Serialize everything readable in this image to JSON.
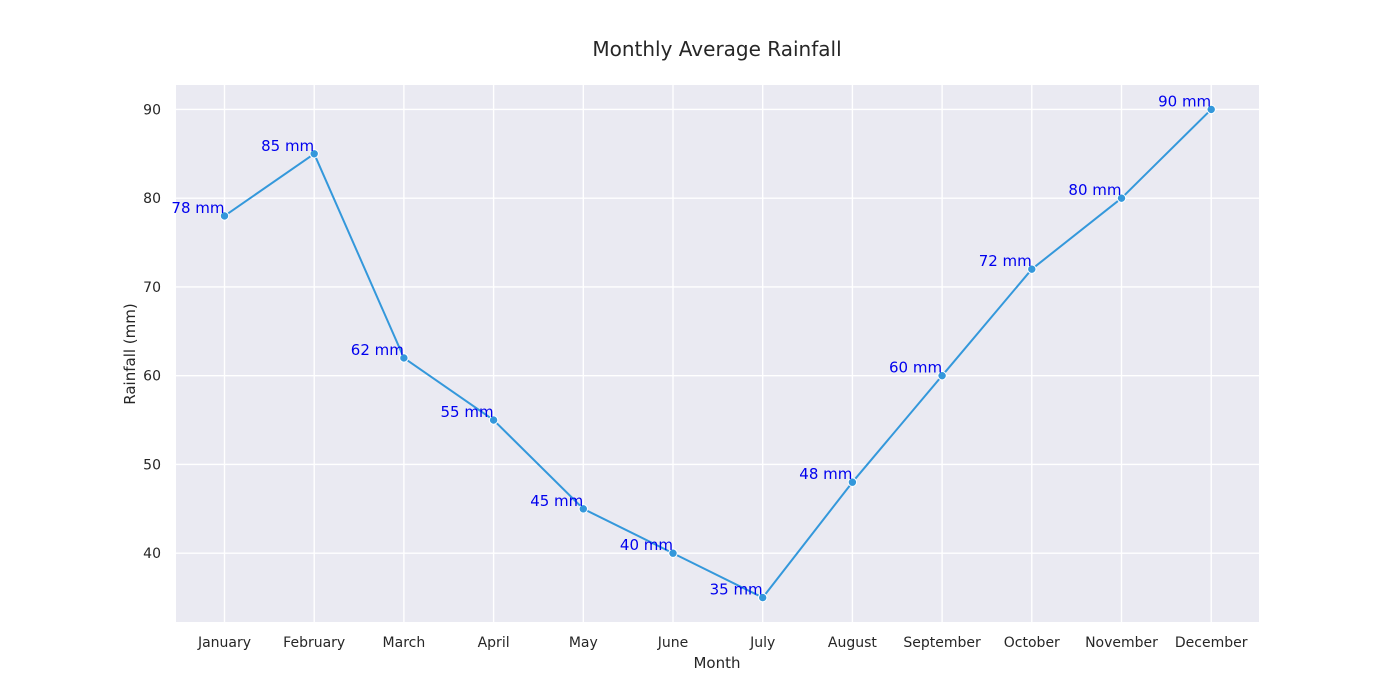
{
  "chart_data": {
    "type": "line",
    "title": "Monthly Average Rainfall",
    "xlabel": "Month",
    "ylabel": "Rainfall (mm)",
    "categories": [
      "January",
      "February",
      "March",
      "April",
      "May",
      "June",
      "July",
      "August",
      "September",
      "October",
      "November",
      "December"
    ],
    "series": [
      {
        "values": [
          78,
          85,
          62,
          55,
          45,
          40,
          35,
          48,
          60,
          72,
          80,
          90
        ],
        "labels": [
          "78 mm",
          "85 mm",
          "62 mm",
          "55 mm",
          "45 mm",
          "40 mm",
          "35 mm",
          "48 mm",
          "60 mm",
          "72 mm",
          "80 mm",
          "90 mm"
        ]
      }
    ],
    "ylim": [
      32.25,
      92.75
    ],
    "yticks": [
      40,
      50,
      60,
      70,
      80,
      90
    ],
    "grid": true,
    "colors": {
      "line": "#3498db",
      "label": "#0000ee",
      "plot_background": "#eaeaf2",
      "grid": "#ffffff"
    }
  }
}
